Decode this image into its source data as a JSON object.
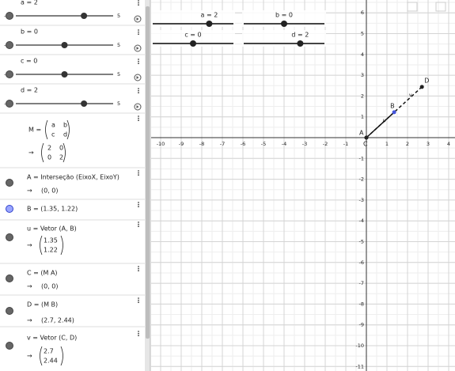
{
  "sliders": [
    {
      "label": "a = 2",
      "value": 2
    },
    {
      "label": "b = 0",
      "value": 0
    },
    {
      "label": "c = 0",
      "value": 0
    },
    {
      "label": "d = 2",
      "value": 2
    }
  ],
  "slider_min": -5,
  "slider_max": 5,
  "arrow": "→",
  "matrix": {
    "label": "M =",
    "symbols": [
      [
        "a",
        "b"
      ],
      [
        "c",
        "d"
      ]
    ],
    "result": [
      [
        "2",
        "0"
      ],
      [
        "0",
        "2"
      ]
    ]
  },
  "items": [
    {
      "label": "A = Interseção (EixoX, EixoY)",
      "result": "(0, 0)"
    },
    {
      "label": "B = (1.35, 1.22)"
    },
    {
      "label": "u = Vetor (A, B)",
      "vector": [
        "1.35",
        "1.22"
      ]
    },
    {
      "label": "C = (M A)",
      "result": "(0, 0)"
    },
    {
      "label": "D = (M B)",
      "result": "(2.7, 2.44)"
    },
    {
      "label": "v = Vetor (C, D)",
      "vector": [
        "2.7",
        "2.44"
      ]
    }
  ],
  "graphics": {
    "xticks": [
      -10,
      -9,
      -8,
      -7,
      -6,
      -5,
      -4,
      -3,
      -2,
      -1,
      1,
      2,
      3,
      4
    ],
    "yticks": [
      6,
      5,
      4,
      3,
      2,
      1,
      -1,
      -2,
      -3,
      -4,
      -5,
      -6,
      -7,
      -8,
      -9,
      -10,
      -11
    ],
    "points": [
      {
        "label": "A",
        "x": 0,
        "y": 0
      },
      {
        "label": "B",
        "x": 1.35,
        "y": 1.22
      },
      {
        "label": "C",
        "x": 0,
        "y": 0
      },
      {
        "label": "D",
        "x": 2.7,
        "y": 2.44
      }
    ],
    "vectors": [
      {
        "label": "u",
        "from": 0,
        "to": 1,
        "dashed": false
      },
      {
        "label": "v",
        "from": 2,
        "to": 3,
        "dashed": true
      }
    ]
  }
}
